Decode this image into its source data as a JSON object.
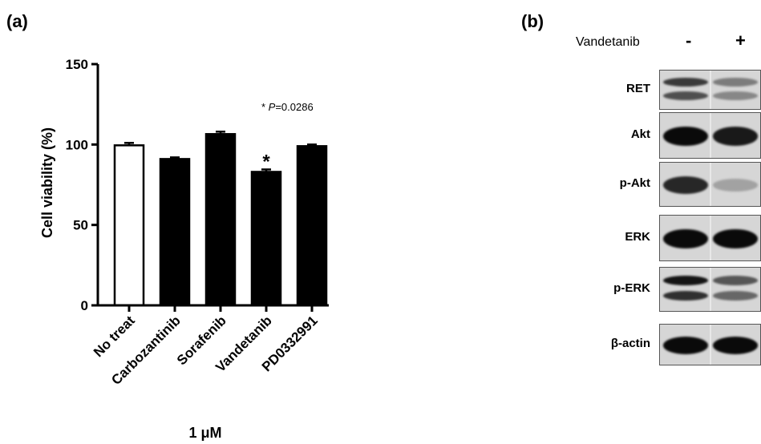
{
  "panel_a": {
    "label": "(a)"
  },
  "panel_b": {
    "label": "(b)"
  },
  "chart_data": {
    "type": "bar",
    "title": "",
    "categories": [
      "No treat",
      "Carbozantinib",
      "Sorafenib",
      "Vandetanib",
      "PD0332991"
    ],
    "values": [
      99.5,
      91,
      106.5,
      83,
      99
    ],
    "errors": [
      1.5,
      1,
      1.5,
      1.5,
      1
    ],
    "bar_fill": [
      "#ffffff",
      "#000000",
      "#000000",
      "#000000",
      "#000000"
    ],
    "ylabel": "Cell viability (%)",
    "xlabel": "1 μM",
    "ylim": [
      0,
      150
    ],
    "yticks": [
      0,
      50,
      100,
      150
    ],
    "significance": {
      "category": "Vandetanib",
      "marker": "*"
    },
    "annotation": {
      "prefix": "* ",
      "italic": "P",
      "suffix": "=0.0286"
    },
    "grid": false,
    "legend": "none"
  },
  "western_blot": {
    "condition_label": "Vandetanib",
    "lane_signs": [
      "-",
      "+"
    ],
    "rows": [
      {
        "label": "RET",
        "lane_intensity": [
          0.75,
          0.4
        ]
      },
      {
        "label": "Akt",
        "lane_intensity": [
          1.0,
          0.92
        ]
      },
      {
        "label": "p-Akt",
        "lane_intensity": [
          0.85,
          0.2
        ]
      },
      {
        "label": "ERK",
        "lane_intensity": [
          1.0,
          1.0
        ]
      },
      {
        "label": "p-ERK",
        "lane_intensity": [
          0.95,
          0.6
        ]
      },
      {
        "label": "β-actin",
        "lane_intensity": [
          1.0,
          1.0
        ]
      }
    ]
  }
}
